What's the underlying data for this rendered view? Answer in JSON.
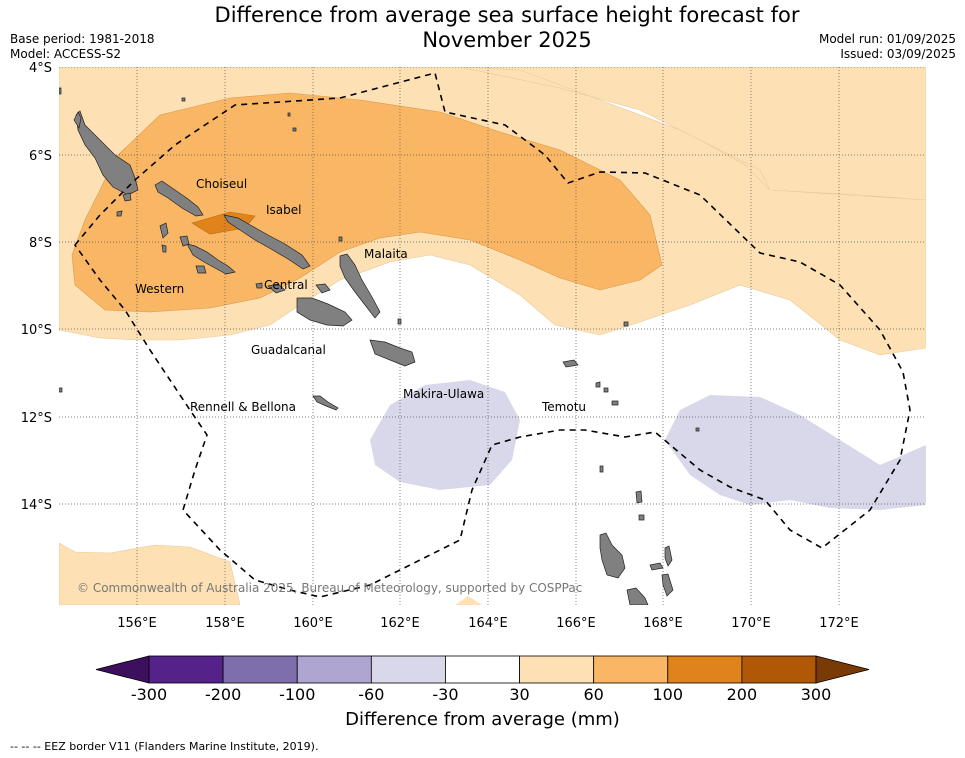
{
  "title": "Difference from average sea surface height forecast for November 2025",
  "meta": {
    "base_period": "Base period: 1981-2018",
    "model": "Model: ACCESS-S2",
    "model_run": "Model run: 01/09/2025",
    "issued": "Issued: 03/09/2025"
  },
  "axes": {
    "lat_labels": [
      "4°S",
      "6°S",
      "8°S",
      "10°S",
      "12°S",
      "14°S"
    ],
    "lon_labels": [
      "156°E",
      "158°E",
      "160°E",
      "162°E",
      "164°E",
      "166°E",
      "168°E",
      "170°E",
      "172°E"
    ]
  },
  "regions": [
    "Choiseul",
    "Isabel",
    "Malaita",
    "Western",
    "Central",
    "Guadalcanal",
    "Rennell & Bellona",
    "Makira-Ulawa",
    "Temotu"
  ],
  "copyright": "© Commonwealth of Australia 2025, Bureau of Meteorology, supported by COSPPac",
  "colorbar": {
    "title": "Difference from average (mm)",
    "tick_labels": [
      "-300",
      "-200",
      "-100",
      "-60",
      "-30",
      "30",
      "60",
      "100",
      "200",
      "300"
    ],
    "colors": [
      "#3f0f5f",
      "#55228a",
      "#7f6eac",
      "#aea6d0",
      "#d8d8ea",
      "#ffffff",
      "#fde0b4",
      "#f9b664",
      "#e0831a",
      "#b15806",
      "#7a3a05"
    ]
  },
  "footnote": "--  --  -- EEZ border V11 (Flanders Marine Institute, 2019)."
}
